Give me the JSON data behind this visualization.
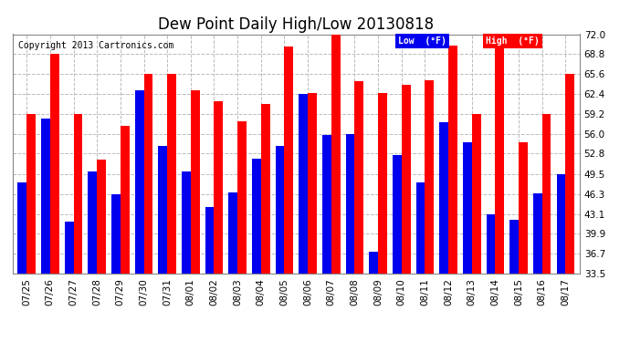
{
  "title": "Dew Point Daily High/Low 20130818",
  "copyright": "Copyright 2013 Cartronics.com",
  "dates": [
    "07/25",
    "07/26",
    "07/27",
    "07/28",
    "07/29",
    "07/30",
    "07/31",
    "08/01",
    "08/02",
    "08/03",
    "08/04",
    "08/05",
    "08/06",
    "08/07",
    "08/08",
    "08/09",
    "08/10",
    "08/11",
    "08/12",
    "08/13",
    "08/14",
    "08/15",
    "08/16",
    "08/17"
  ],
  "high": [
    59.2,
    68.8,
    59.2,
    51.8,
    57.2,
    65.6,
    65.6,
    63.0,
    61.2,
    58.0,
    60.8,
    70.0,
    62.6,
    72.0,
    64.4,
    62.6,
    63.8,
    64.6,
    70.2,
    59.2,
    70.0,
    54.6,
    59.2,
    65.6
  ],
  "low": [
    48.2,
    58.4,
    41.8,
    50.0,
    46.3,
    63.0,
    54.0,
    50.0,
    44.2,
    46.6,
    52.0,
    54.0,
    62.4,
    55.8,
    56.0,
    37.0,
    52.6,
    48.2,
    57.8,
    54.6,
    43.0,
    42.2,
    46.4,
    49.5
  ],
  "ylim_min": 33.5,
  "ylim_max": 72.0,
  "yticks": [
    33.5,
    36.7,
    39.9,
    43.1,
    46.3,
    49.5,
    52.8,
    56.0,
    59.2,
    62.4,
    65.6,
    68.8,
    72.0
  ],
  "bar_width": 0.38,
  "high_color": "#FF0000",
  "low_color": "#0000EE",
  "bg_color": "#FFFFFF",
  "grid_color": "#BBBBBB",
  "title_fontsize": 12,
  "tick_fontsize": 7.5,
  "copyright_fontsize": 7,
  "legend_low_label": "Low  (°F)",
  "legend_high_label": "High  (°F)"
}
